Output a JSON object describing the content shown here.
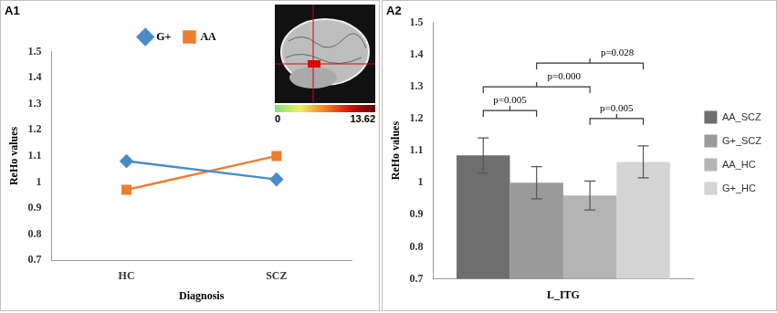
{
  "chart_data": [
    {
      "type": "line",
      "title": "A1",
      "categories": [
        "HC",
        "SCZ"
      ],
      "x_label": "Diagnosis",
      "y_label": "ReHo values",
      "series": [
        {
          "name": "G+",
          "color": "#4a8bc8",
          "marker": "diamond",
          "values": [
            1.08,
            1.01
          ]
        },
        {
          "name": "AA",
          "color": "#ed7d31",
          "marker": "square",
          "values": [
            0.97,
            1.1
          ]
        }
      ],
      "ylim": [
        0.7,
        1.5
      ],
      "yticks": [
        0.7,
        0.8,
        0.9,
        1,
        1.1,
        1.2,
        1.3,
        1.4,
        1.5
      ],
      "grid": false,
      "legend": "top",
      "inset": {
        "colorbar_ticks": [
          0,
          13.62
        ]
      }
    },
    {
      "type": "bar",
      "title": "A2",
      "categories": [
        "L_ITG"
      ],
      "y_label": "ReHo values",
      "series": [
        {
          "name": "AA_SCZ",
          "color": "#6e6e6e",
          "values": [
            1.085
          ],
          "errors": [
            0.055
          ]
        },
        {
          "name": "G+_SCZ",
          "color": "#9a9a9a",
          "values": [
            1.0
          ],
          "errors": [
            0.05
          ]
        },
        {
          "name": "AA_HC",
          "color": "#b4b4b4",
          "values": [
            0.96
          ],
          "errors": [
            0.045
          ]
        },
        {
          "name": "G+_HC",
          "color": "#d4d4d4",
          "values": [
            1.065
          ],
          "errors": [
            0.05
          ]
        }
      ],
      "ylim": [
        0.7,
        1.5
      ],
      "yticks": [
        0.7,
        0.8,
        0.9,
        1,
        1.1,
        1.2,
        1.3,
        1.4,
        1.5
      ],
      "grid": false,
      "legend": "right",
      "annotations": [
        {
          "text": "p=0.005",
          "between": [
            0,
            1
          ]
        },
        {
          "text": "p=0.005",
          "between": [
            2,
            3
          ]
        },
        {
          "text": "p=0.000",
          "between": [
            0,
            2
          ]
        },
        {
          "text": "p=0.028",
          "between": [
            1,
            3
          ]
        }
      ]
    }
  ]
}
